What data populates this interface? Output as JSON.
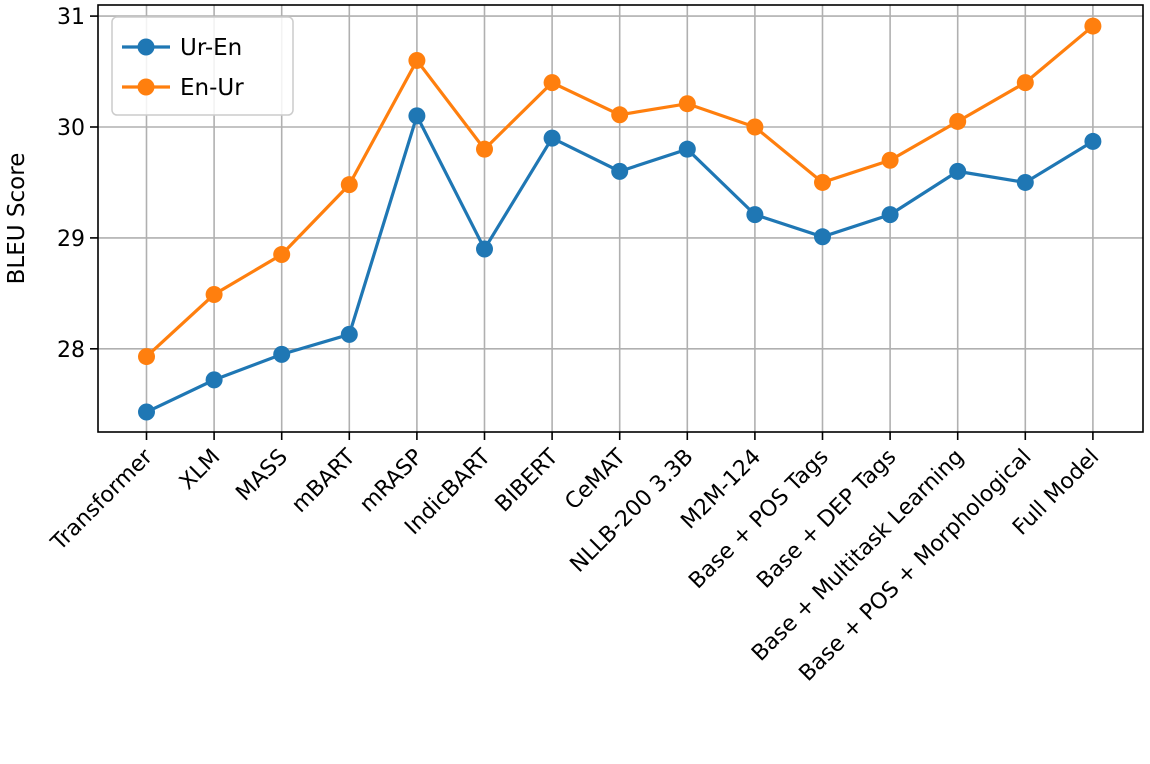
{
  "chart_data": {
    "type": "line",
    "title": "",
    "xlabel": "",
    "ylabel": "BLEU Score",
    "categories": [
      "Transformer",
      "XLM",
      "MASS",
      "mBART",
      "mRASP",
      "IndicBART",
      "BIBERT",
      "CeMAT",
      "NLLB-200 3.3B",
      "M2M-124",
      "Base + POS Tags",
      "Base + DEP Tags",
      "Base + Multitask Learning",
      "Base + POS + Morphological",
      "Full Model"
    ],
    "yticks": [
      28,
      29,
      30,
      31
    ],
    "ylim": [
      27.25,
      31.1
    ],
    "grid": true,
    "legend_position": "top-left",
    "series": [
      {
        "name": "Ur-En",
        "color": "#1f77b4",
        "values": [
          27.43,
          27.72,
          27.95,
          28.13,
          30.1,
          28.9,
          29.9,
          29.6,
          29.8,
          29.21,
          29.01,
          29.21,
          29.6,
          29.5,
          29.87
        ]
      },
      {
        "name": "En-Ur",
        "color": "#ff7f0e",
        "values": [
          27.93,
          28.49,
          28.85,
          29.48,
          30.6,
          29.8,
          30.4,
          30.11,
          30.21,
          30.0,
          29.5,
          29.7,
          30.05,
          30.4,
          30.91
        ]
      }
    ]
  }
}
